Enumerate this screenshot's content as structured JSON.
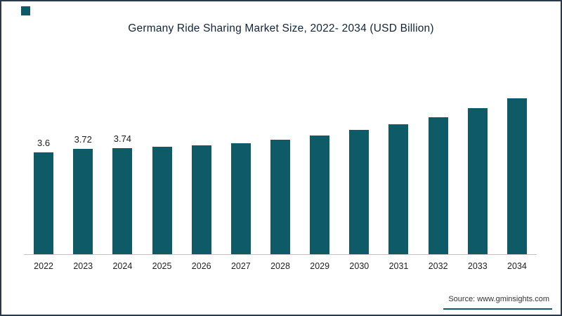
{
  "accent_color": "#0e5a66",
  "chart_data": {
    "type": "bar",
    "title": "Germany Ride Sharing Market Size, 2022- 2034 (USD Billion)",
    "xlabel": "",
    "ylabel": "",
    "categories": [
      "2022",
      "2023",
      "2024",
      "2025",
      "2026",
      "2027",
      "2028",
      "2029",
      "2030",
      "2031",
      "2032",
      "2033",
      "2034"
    ],
    "values": [
      3.6,
      3.72,
      3.74,
      3.79,
      3.85,
      3.93,
      4.05,
      4.2,
      4.38,
      4.6,
      4.85,
      5.15,
      5.5
    ],
    "bar_labels": [
      "3.6",
      "3.72",
      "3.74",
      "",
      "",
      "",
      "",
      "",
      "",
      "",
      "",
      "",
      ""
    ],
    "bar_color": "#0e5a66",
    "ylim": [
      0,
      6
    ],
    "grid": false,
    "legend": false,
    "y_axis_shown": false
  },
  "source": {
    "text": "Source: www.gminsights.com"
  }
}
